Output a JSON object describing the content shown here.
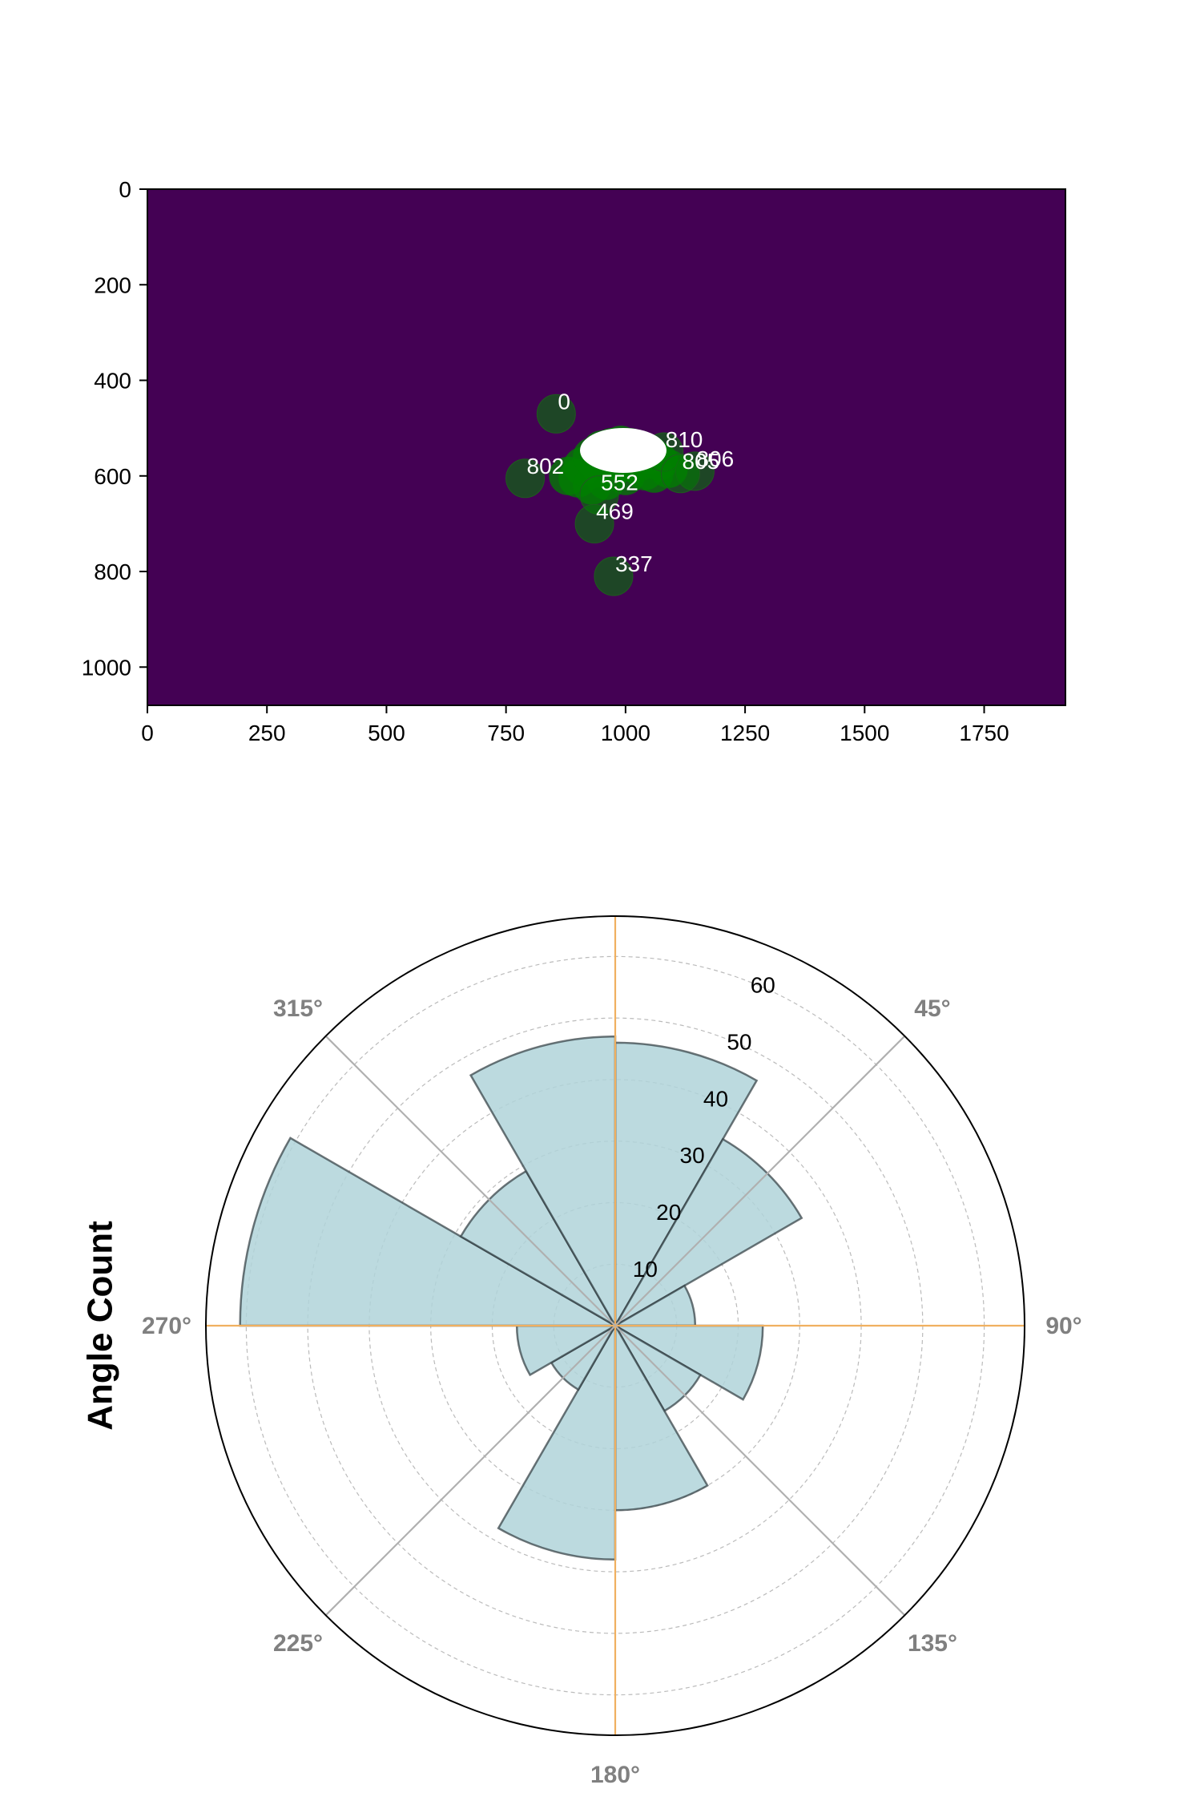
{
  "chart_data": [
    {
      "type": "scatter",
      "title": "",
      "xlabel": "",
      "ylabel": "",
      "xlim": [
        0,
        1920
      ],
      "ylim": [
        1080,
        0
      ],
      "background_color": "#440154",
      "marker_color": "#008000",
      "x_ticks": [
        "0",
        "250",
        "500",
        "750",
        "1000",
        "1250",
        "1500",
        "1750"
      ],
      "y_ticks": [
        "0",
        "200",
        "400",
        "600",
        "800",
        "1000"
      ],
      "labeled_points": [
        {
          "label": "0",
          "x": 855,
          "y": 470
        },
        {
          "label": "810",
          "x": 1080,
          "y": 550
        },
        {
          "label": "806",
          "x": 1145,
          "y": 590
        },
        {
          "label": "805",
          "x": 1115,
          "y": 595
        },
        {
          "label": "802",
          "x": 790,
          "y": 605
        },
        {
          "label": "552",
          "x": 945,
          "y": 640
        },
        {
          "label": "469",
          "x": 935,
          "y": 700
        },
        {
          "label": "337",
          "x": 975,
          "y": 810
        }
      ],
      "cluster_points": [
        {
          "x": 880,
          "y": 600
        },
        {
          "x": 910,
          "y": 580
        },
        {
          "x": 930,
          "y": 560
        },
        {
          "x": 950,
          "y": 545
        },
        {
          "x": 970,
          "y": 540
        },
        {
          "x": 990,
          "y": 535
        },
        {
          "x": 1010,
          "y": 540
        },
        {
          "x": 1030,
          "y": 545
        },
        {
          "x": 1050,
          "y": 555
        },
        {
          "x": 1070,
          "y": 570
        },
        {
          "x": 1090,
          "y": 585
        },
        {
          "x": 1040,
          "y": 590
        },
        {
          "x": 1000,
          "y": 600
        },
        {
          "x": 960,
          "y": 610
        },
        {
          "x": 930,
          "y": 620
        },
        {
          "x": 985,
          "y": 575
        },
        {
          "x": 1020,
          "y": 575
        },
        {
          "x": 950,
          "y": 585
        },
        {
          "x": 1060,
          "y": 595
        },
        {
          "x": 900,
          "y": 605
        }
      ]
    },
    {
      "type": "bar",
      "subtype": "polar",
      "title": "",
      "ylabel": "Angle Count",
      "theta_direction": "clockwise",
      "theta_zero": "top",
      "angle_labels": [
        "45°",
        "90°",
        "135°",
        "180°",
        "225°",
        "270°",
        "315°"
      ],
      "bin_centers_deg": [
        15,
        45,
        75,
        105,
        135,
        165,
        195,
        225,
        255,
        285,
        315,
        345
      ],
      "bin_width_deg": 30,
      "values": [
        46,
        35,
        13,
        24,
        16,
        30,
        38,
        12,
        16,
        61,
        29,
        47
      ],
      "r_ticks": [
        "10",
        "20",
        "30",
        "40",
        "50",
        "60"
      ],
      "rlim": [
        0,
        65
      ],
      "bar_color": "#b0d4d9",
      "grid": true
    }
  ]
}
